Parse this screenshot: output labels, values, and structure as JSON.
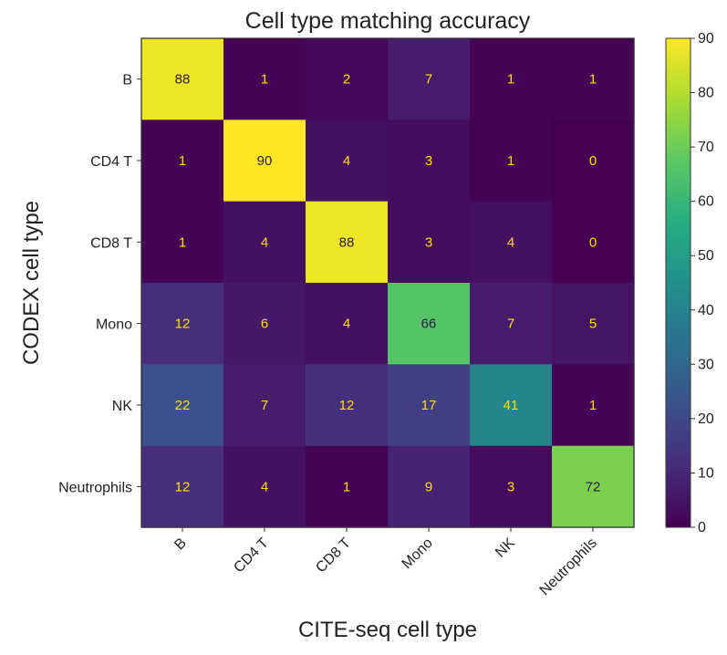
{
  "chart_data": {
    "type": "heatmap",
    "title": "Cell type matching accuracy",
    "xlabel": "CITE-seq cell type",
    "ylabel": "CODEX cell type",
    "x_categories": [
      "B",
      "CD4 T",
      "CD8 T",
      "Mono",
      "NK",
      "Neutrophils"
    ],
    "y_categories": [
      "B",
      "CD4 T",
      "CD8 T",
      "Mono",
      "NK",
      "Neutrophils"
    ],
    "values": [
      [
        88,
        1,
        2,
        7,
        1,
        1
      ],
      [
        1,
        90,
        4,
        3,
        1,
        0
      ],
      [
        1,
        4,
        88,
        3,
        4,
        0
      ],
      [
        12,
        6,
        4,
        66,
        7,
        5
      ],
      [
        22,
        7,
        12,
        17,
        41,
        1
      ],
      [
        12,
        4,
        1,
        9,
        3,
        72
      ]
    ],
    "colormap": "viridis",
    "vmin": 0,
    "vmax": 90,
    "colorbar_ticks": [
      0,
      10,
      20,
      30,
      40,
      50,
      60,
      70,
      80,
      90
    ],
    "text_colors": {
      "on_dark": "#ffe100",
      "on_light": "#2a1a4a"
    },
    "grid": false
  }
}
